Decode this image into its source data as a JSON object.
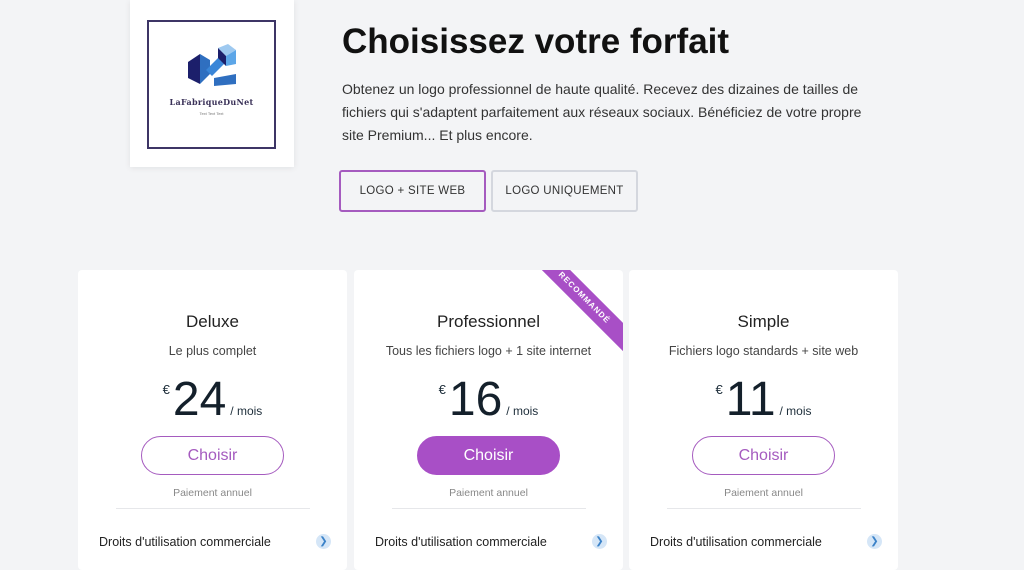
{
  "logo": {
    "brand": "LaFabriqueDuNet",
    "tagline": "Text Text Text"
  },
  "header": {
    "title": "Choisissez votre forfait",
    "description": "Obtenez un logo professionnel de haute qualité. Recevez des dizaines de tailles de fichiers qui s'adaptent parfaitement aux réseaux sociaux. Bénéficiez de votre propre site Premium... Et plus encore."
  },
  "toggle": {
    "options": [
      {
        "label": "LOGO + SITE WEB",
        "selected": true
      },
      {
        "label": "LOGO UNIQUEMENT",
        "selected": false
      }
    ]
  },
  "accent": "#a84fc6",
  "plans": [
    {
      "name": "Deluxe",
      "subtitle": "Le plus complet",
      "currency": "€",
      "price": "24",
      "period": "/ mois",
      "button": "Choisir",
      "billing": "Paiement annuel",
      "feature": "Droits d'utilisation commerciale"
    },
    {
      "name": "Professionnel",
      "subtitle": "Tous les fichiers logo + 1 site internet",
      "currency": "€",
      "price": "16",
      "period": "/ mois",
      "button": "Choisir",
      "billing": "Paiement annuel",
      "feature": "Droits d'utilisation commerciale",
      "ribbon": "RECOMMANDÉ"
    },
    {
      "name": "Simple",
      "subtitle": "Fichiers logo standards + site web",
      "currency": "€",
      "price": "11",
      "period": "/ mois",
      "button": "Choisir",
      "billing": "Paiement annuel",
      "feature": "Droits d'utilisation commerciale"
    }
  ]
}
